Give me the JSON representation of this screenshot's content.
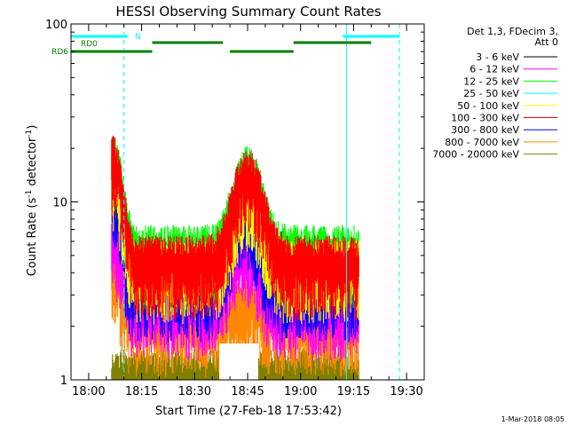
{
  "chart_data": {
    "type": "line",
    "title": "HESSI Observing Summary Count Rates",
    "xlabel": "Start Time (27-Feb-18 17:53:42)",
    "ylabel_main": "Count Rate (s",
    "ylabel_sup": "-1",
    "ylabel_rest": " detector",
    "ylabel_sup2": "-1",
    "ylabel_end": ")",
    "footer": "1-Mar-2018 08:05",
    "y_scale": "log",
    "ylim": [
      1,
      100
    ],
    "xlim_minutes": [
      -5,
      95
    ],
    "x_ticks": [
      {
        "m": 0,
        "label": "18:00"
      },
      {
        "m": 15,
        "label": "18:15"
      },
      {
        "m": 30,
        "label": "18:30"
      },
      {
        "m": 45,
        "label": "18:45"
      },
      {
        "m": 60,
        "label": "19:00"
      },
      {
        "m": 75,
        "label": "19:15"
      },
      {
        "m": 90,
        "label": "19:30"
      }
    ],
    "y_ticks": [
      {
        "v": 1,
        "label": "1"
      },
      {
        "v": 10,
        "label": "10"
      },
      {
        "v": 100,
        "label": "100"
      }
    ],
    "legend_title_1": "Det 1,3, FDecim 3,",
    "legend_title_2": "Att 0",
    "legend_position": "right",
    "series": [
      {
        "name": "3 - 6 keV",
        "color": "#000000"
      },
      {
        "name": "6 - 12 keV",
        "color": "#ff00ff"
      },
      {
        "name": "12 - 25 keV",
        "color": "#00ff00"
      },
      {
        "name": "25 - 50 keV",
        "color": "#00ffff"
      },
      {
        "name": "50 - 100 keV",
        "color": "#ffff00"
      },
      {
        "name": "100 - 300 keV",
        "color": "#ff0000"
      },
      {
        "name": "300 - 800 keV",
        "color": "#0000ff"
      },
      {
        "name": "800 - 7000 keV",
        "color": "#ff8800"
      },
      {
        "name": "7000 - 20000 keV",
        "color": "#808000"
      }
    ],
    "flag_labels": {
      "n": "N",
      "rd0": "RD0",
      "rd6": "RD6"
    },
    "flag_colors": {
      "n": "#00ffff",
      "rd": "#008000"
    },
    "n_flag_segments": [
      [
        -8,
        11
      ],
      [
        72,
        88
      ]
    ],
    "rd6_segments": [
      [
        -5,
        18
      ],
      [
        40,
        58
      ]
    ],
    "rd0_segments": [
      [
        18,
        38
      ],
      [
        58,
        80
      ]
    ],
    "vertical_solid_m": [
      -5,
      73
    ],
    "vertical_dashed_m": [
      10,
      88
    ],
    "data_window_minutes": [
      6.5,
      76.5
    ]
  }
}
